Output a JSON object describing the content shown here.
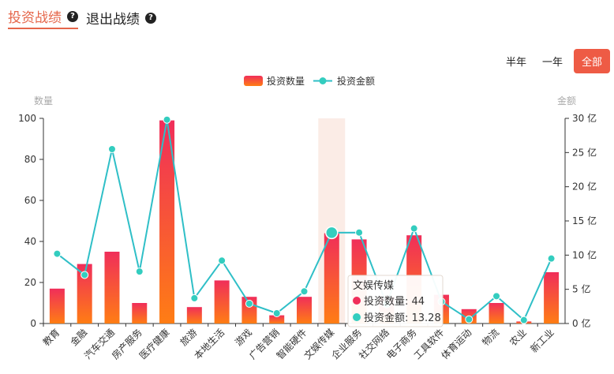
{
  "tabs": [
    {
      "label": "投资战绩",
      "active": true
    },
    {
      "label": "退出战绩",
      "active": false
    }
  ],
  "help_icon": "question-circle-icon",
  "range_buttons": [
    {
      "label": "半年",
      "active": false
    },
    {
      "label": "一年",
      "active": false
    },
    {
      "label": "全部",
      "active": true
    }
  ],
  "colors": {
    "accent": "#ee5b45",
    "bar_top": "#f02e5a",
    "bar_bottom": "#ff7d14",
    "line": "#2fbfc7",
    "point": "#33cdbf",
    "highlight": "#fbece6"
  },
  "chart_data": {
    "type": "bar",
    "categories": [
      "教育",
      "金融",
      "汽车交通",
      "房产服务",
      "医疗健康",
      "旅游",
      "本地生活",
      "游戏",
      "广告营销",
      "智能硬件",
      "文娱传媒",
      "企业服务",
      "社交网络",
      "电子商务",
      "工具软件",
      "体育运动",
      "物流",
      "农业",
      "新工业"
    ],
    "series": [
      {
        "name": "投资数量",
        "type": "bar",
        "axis": "left",
        "values": [
          17,
          29,
          35,
          10,
          99,
          8,
          21,
          13,
          4,
          13,
          44,
          41,
          13,
          43,
          14,
          7,
          10,
          1,
          25
        ]
      },
      {
        "name": "投资金额",
        "type": "line",
        "axis": "right",
        "values": [
          10.2,
          7.1,
          25.5,
          7.6,
          29.8,
          3.7,
          9.2,
          2.9,
          1.5,
          4.7,
          13.28,
          13.3,
          2.8,
          13.9,
          3.2,
          0.6,
          4.0,
          0.5,
          9.5
        ]
      }
    ],
    "y_left": {
      "label": "数量",
      "ylim": [
        0,
        100
      ],
      "ticks": [
        "0",
        "20",
        "40",
        "60",
        "80",
        "100"
      ]
    },
    "y_right": {
      "label": "金额",
      "ylim": [
        0,
        30
      ],
      "ticks": [
        "0 亿",
        "5 亿",
        "10 亿",
        "15 亿",
        "20 亿",
        "25 亿",
        "30 亿"
      ]
    },
    "legend_position": "top-center",
    "grid": false,
    "tooltip": {
      "category_index": 10,
      "title": "文娱传媒",
      "lines": [
        "投资数量: 44",
        "投资金额: 13.28"
      ]
    }
  }
}
